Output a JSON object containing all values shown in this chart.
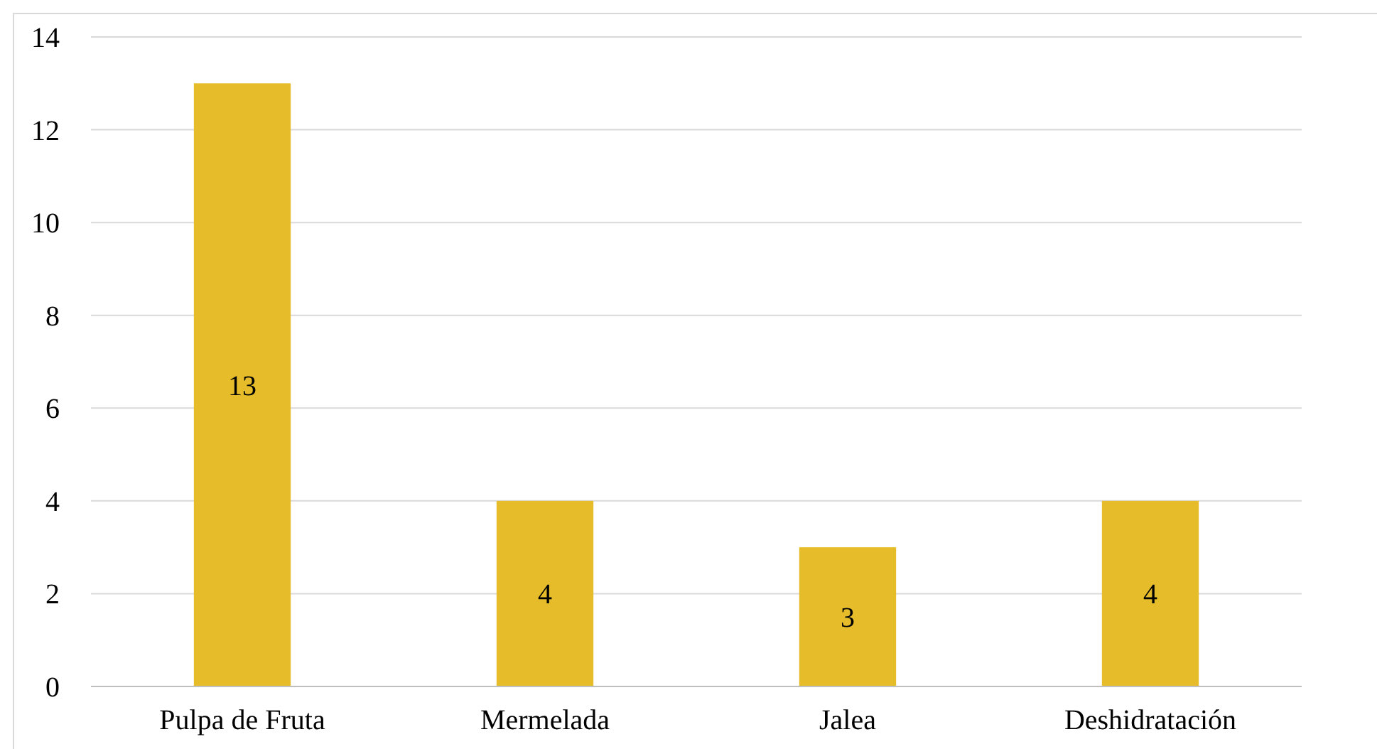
{
  "chart_data": {
    "type": "bar",
    "categories": [
      "Pulpa de Fruta",
      "Mermelada",
      "Jalea",
      "Deshidratación"
    ],
    "values": [
      13,
      4,
      3,
      4
    ],
    "color": "#e6bc2a",
    "ylim": [
      0,
      14
    ],
    "yticks": [
      0,
      2,
      4,
      6,
      8,
      10,
      12,
      14
    ],
    "grid": "y",
    "data_labels": true
  }
}
